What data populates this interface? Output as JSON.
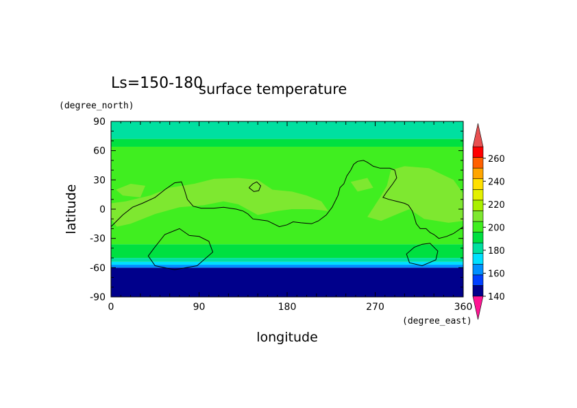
{
  "chart_data": {
    "type": "heatmap",
    "panel_label": "Ls=150-180",
    "title": "surface temperature",
    "xlabel": "longitude",
    "ylabel": "latitude",
    "x_unit": "(degree_east)",
    "y_unit": "(degree_north)",
    "xlim": [
      0,
      360
    ],
    "ylim": [
      -90,
      90
    ],
    "x_ticks": [
      "0",
      "90",
      "180",
      "270",
      "360"
    ],
    "y_ticks": [
      "90",
      "60",
      "30",
      "0",
      "-30",
      "-60",
      "-90"
    ],
    "colorbar": {
      "tick_labels": [
        "140",
        "160",
        "180",
        "200",
        "220",
        "240",
        "260"
      ],
      "levels": [
        130,
        140,
        150,
        160,
        170,
        180,
        190,
        200,
        210,
        220,
        230,
        240,
        250,
        260,
        270,
        280
      ],
      "colors": [
        "#ff1493",
        "#00008b",
        "#0040ff",
        "#0090ff",
        "#00e0ff",
        "#00e0a0",
        "#00e040",
        "#40ee20",
        "#7ee830",
        "#aaf000",
        "#e4f000",
        "#ffe000",
        "#ffa500",
        "#ff6000",
        "#ff0000",
        "#e85050"
      ],
      "extend": "both"
    },
    "zonal_bands": [
      {
        "lat_min": -90,
        "lat_max": -60,
        "value": 140
      },
      {
        "lat_min": -60,
        "lat_max": -57,
        "value": 165
      },
      {
        "lat_min": -57,
        "lat_max": -54,
        "value": 175
      },
      {
        "lat_min": -54,
        "lat_max": -50,
        "value": 185
      },
      {
        "lat_min": -50,
        "lat_max": -36,
        "value": 195
      },
      {
        "lat_min": -36,
        "lat_max": 64,
        "value": 205
      },
      {
        "lat_min": 64,
        "lat_max": 72,
        "value": 195
      },
      {
        "lat_min": 72,
        "lat_max": 90,
        "value": 185
      }
    ],
    "warm_regions": [
      {
        "value": 215,
        "points": [
          [
            0,
            -10
          ],
          [
            6,
            -18
          ],
          [
            20,
            -15
          ],
          [
            45,
            -5
          ],
          [
            70,
            2
          ],
          [
            95,
            4
          ],
          [
            115,
            8
          ],
          [
            130,
            5
          ],
          [
            150,
            -6
          ],
          [
            170,
            -2
          ],
          [
            185,
            0
          ],
          [
            205,
            0
          ],
          [
            222,
            -2
          ],
          [
            215,
            8
          ],
          [
            200,
            14
          ],
          [
            185,
            18
          ],
          [
            165,
            20
          ],
          [
            150,
            30
          ],
          [
            130,
            32
          ],
          [
            105,
            31
          ],
          [
            85,
            26
          ],
          [
            60,
            22
          ],
          [
            40,
            14
          ],
          [
            15,
            8
          ],
          [
            0,
            6
          ]
        ]
      },
      {
        "value": 215,
        "points": [
          [
            262,
            -8
          ],
          [
            276,
            -12
          ],
          [
            295,
            -4
          ],
          [
            305,
            0
          ],
          [
            320,
            -10
          ],
          [
            345,
            -14
          ],
          [
            360,
            -12
          ],
          [
            360,
            16
          ],
          [
            350,
            30
          ],
          [
            325,
            42
          ],
          [
            300,
            44
          ],
          [
            286,
            40
          ],
          [
            282,
            24
          ],
          [
            275,
            12
          ]
        ]
      },
      {
        "value": 215,
        "points": [
          [
            5,
            20
          ],
          [
            20,
            26
          ],
          [
            35,
            24
          ],
          [
            30,
            12
          ],
          [
            12,
            14
          ]
        ]
      },
      {
        "value": 215,
        "points": [
          [
            245,
            28
          ],
          [
            262,
            32
          ],
          [
            268,
            22
          ],
          [
            252,
            18
          ]
        ]
      }
    ],
    "contour_line": {
      "value": 0,
      "paths": [
        [
          [
            0,
            -18
          ],
          [
            12,
            -6
          ],
          [
            22,
            2
          ],
          [
            32,
            6
          ],
          [
            45,
            12
          ],
          [
            55,
            20
          ],
          [
            65,
            27
          ],
          [
            72,
            28
          ],
          [
            75,
            20
          ],
          [
            78,
            10
          ],
          [
            84,
            3
          ],
          [
            92,
            1
          ],
          [
            105,
            1
          ],
          [
            115,
            2
          ],
          [
            128,
            0
          ],
          [
            135,
            -2
          ],
          [
            140,
            -5
          ],
          [
            145,
            -10
          ],
          [
            160,
            -12
          ],
          [
            172,
            -18
          ],
          [
            180,
            -16
          ],
          [
            186,
            -13
          ],
          [
            194,
            -14
          ],
          [
            205,
            -15
          ],
          [
            212,
            -12
          ],
          [
            220,
            -6
          ],
          [
            226,
            2
          ],
          [
            232,
            14
          ],
          [
            234,
            22
          ],
          [
            238,
            26
          ],
          [
            241,
            34
          ],
          [
            245,
            40
          ],
          [
            248,
            46
          ],
          [
            252,
            49
          ],
          [
            258,
            50
          ],
          [
            262,
            48
          ],
          [
            268,
            44
          ],
          [
            275,
            42
          ],
          [
            285,
            42
          ],
          [
            290,
            40
          ],
          [
            292,
            32
          ],
          [
            288,
            26
          ],
          [
            282,
            18
          ],
          [
            278,
            12
          ],
          [
            284,
            10
          ],
          [
            292,
            8
          ],
          [
            300,
            6
          ],
          [
            304,
            4
          ],
          [
            308,
            -2
          ],
          [
            310,
            -8
          ],
          [
            312,
            -15
          ],
          [
            316,
            -20
          ],
          [
            322,
            -20
          ],
          [
            326,
            -24
          ],
          [
            330,
            -26
          ],
          [
            335,
            -30
          ],
          [
            343,
            -28
          ],
          [
            350,
            -25
          ],
          [
            360,
            -18
          ]
        ],
        [
          [
            141,
            22
          ],
          [
            145,
            26
          ],
          [
            149,
            28
          ],
          [
            153,
            24
          ],
          [
            151,
            19
          ],
          [
            146,
            18
          ],
          [
            141,
            22
          ]
        ],
        [
          [
            80,
            -27
          ],
          [
            70,
            -20
          ],
          [
            55,
            -26
          ],
          [
            44,
            -40
          ],
          [
            38,
            -48
          ],
          [
            45,
            -58
          ],
          [
            65,
            -62
          ],
          [
            88,
            -58
          ],
          [
            104,
            -44
          ],
          [
            100,
            -33
          ],
          [
            90,
            -28
          ],
          [
            80,
            -27
          ]
        ],
        [
          [
            318,
            -36
          ],
          [
            326,
            -35
          ],
          [
            334,
            -43
          ],
          [
            332,
            -52
          ],
          [
            318,
            -58
          ],
          [
            305,
            -55
          ],
          [
            302,
            -46
          ],
          [
            310,
            -39
          ],
          [
            318,
            -36
          ]
        ]
      ]
    }
  }
}
